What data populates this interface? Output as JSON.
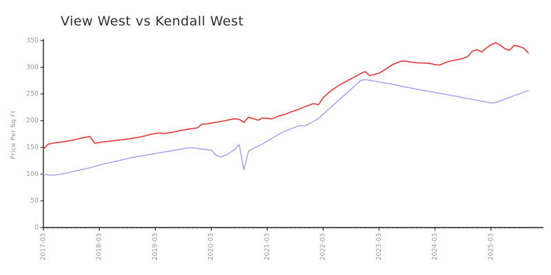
{
  "chart_data": {
    "type": "line",
    "title": "View West vs Kendall West",
    "xlabel": "",
    "ylabel": "Price Per Sq Ft",
    "x_tick_labels": [
      "2017-03",
      "2018-03",
      "2019-03",
      "2020-03",
      "2021-03",
      "2022-03",
      "2023-03",
      "2024-03",
      "2025-03"
    ],
    "x_major_tick_every": 12,
    "x_minor_interval": "month",
    "x_range_months": 105,
    "ylim": [
      0,
      350
    ],
    "y_ticks": [
      0,
      50,
      100,
      150,
      200,
      250,
      300,
      350
    ],
    "grid": "off",
    "legend": "none",
    "series": [
      {
        "name": "View West",
        "color": "#e23d3f",
        "values": [
          147,
          156,
          158,
          159,
          160,
          161.5,
          163,
          165,
          167,
          169,
          170.5,
          158,
          159,
          160.5,
          161.5,
          162.5,
          163.5,
          164.5,
          165.5,
          167,
          168.5,
          170,
          172,
          174.5,
          176,
          177,
          176,
          177.5,
          179,
          181,
          182.5,
          184,
          185.5,
          186.5,
          193.5,
          194,
          195.5,
          197,
          198.5,
          200,
          202,
          203.5,
          202.5,
          197,
          206.5,
          204,
          201,
          205,
          204.5,
          203.5,
          207,
          210,
          212.5,
          216,
          219,
          222,
          226,
          229,
          232,
          230,
          243,
          251,
          258,
          264,
          269,
          274,
          278.5,
          283,
          288,
          292,
          284.5,
          286.5,
          289,
          294,
          300,
          305.5,
          309,
          312,
          311,
          309.5,
          308.5,
          308,
          308,
          307,
          305,
          304,
          308,
          311,
          313,
          314.5,
          316.5,
          320,
          330,
          333,
          328.5,
          336,
          342,
          346,
          341.5,
          334.5,
          332,
          341,
          339,
          336,
          327
        ]
      },
      {
        "name": "Kendall West",
        "color": "#9d9df0",
        "values": [
          100,
          98.5,
          98,
          99,
          100.5,
          102,
          104,
          106,
          108,
          110,
          112,
          114.5,
          117,
          119,
          121,
          123,
          125,
          127,
          129,
          131,
          132.5,
          134,
          135.5,
          137,
          138.5,
          140,
          141.5,
          143,
          144.5,
          146,
          147.5,
          149,
          149.5,
          148,
          147,
          146,
          145,
          135.5,
          132,
          135,
          140,
          146,
          155,
          108,
          143,
          148,
          152,
          156.5,
          162,
          167,
          172,
          177,
          181,
          184.5,
          188,
          191,
          190,
          194,
          199,
          204,
          212,
          220,
          228,
          236,
          243.5,
          251,
          259,
          267,
          275,
          277,
          275.5,
          274,
          272.5,
          271,
          269.5,
          268,
          266,
          264,
          262.5,
          261,
          259,
          257.5,
          256,
          254.5,
          253,
          251,
          249.5,
          248,
          246.5,
          245,
          243,
          241.5,
          240,
          238,
          236.5,
          235,
          233,
          234,
          237,
          240.5,
          243.5,
          247,
          250,
          253,
          256
        ]
      }
    ]
  },
  "colors": {
    "axis": "#1c1c1c",
    "major_tick": "#555555",
    "minor_tick": "#c9c9c9",
    "tick_label": "#9a9a9a",
    "title": "#2e2e2e"
  }
}
